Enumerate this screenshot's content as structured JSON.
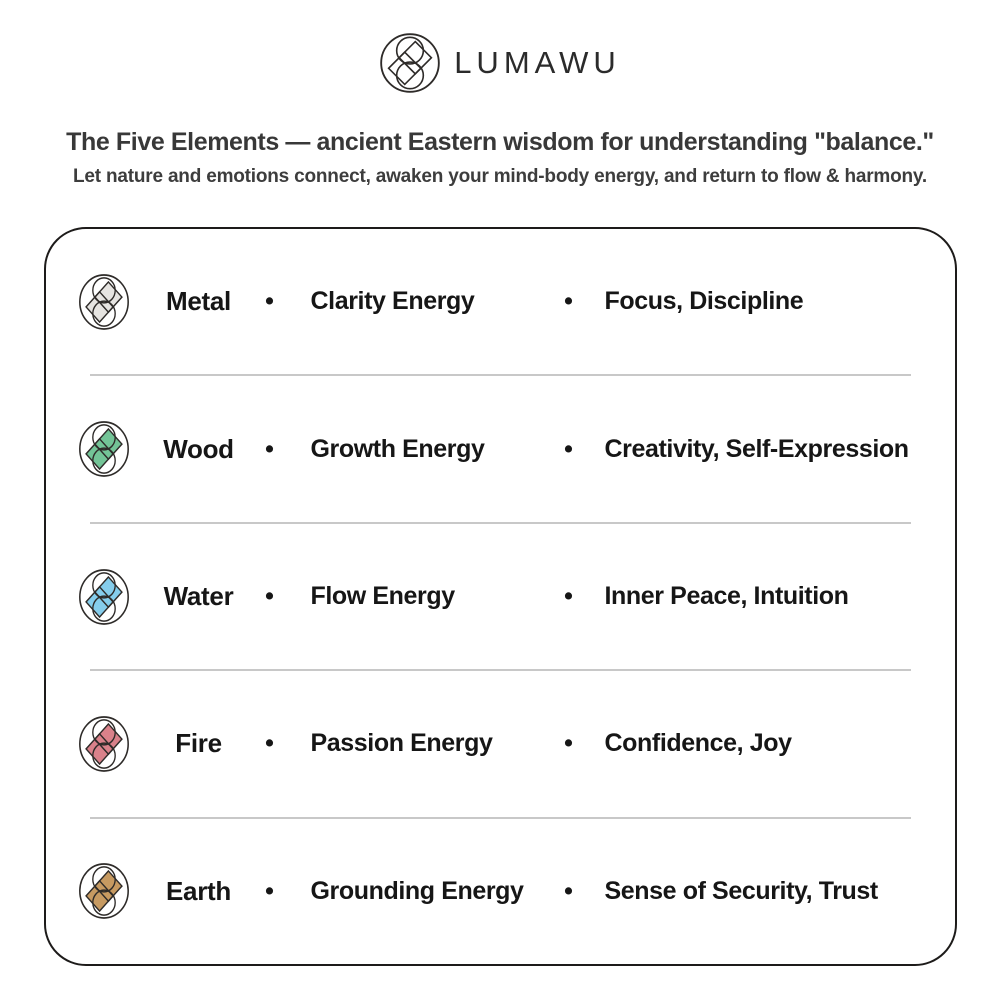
{
  "brand": {
    "name": "LUMAWU"
  },
  "heading": {
    "title": "The Five Elements — ancient Eastern wisdom for understanding \"balance.\"",
    "subtitle": "Let nature and emotions connect, awaken your mind-body energy, and return to flow & harmony."
  },
  "table": {
    "bullet": "•",
    "rows": [
      {
        "element": "Metal",
        "energy": "Clarity Energy",
        "traits": "Focus, Discipline",
        "color": "#e6e4e1"
      },
      {
        "element": "Wood",
        "energy": "Growth Energy",
        "traits": "Creativity, Self-Expression",
        "color": "#73c497"
      },
      {
        "element": "Water",
        "energy": "Flow Energy",
        "traits": "Inner Peace, Intuition",
        "color": "#85cdec"
      },
      {
        "element": "Fire",
        "energy": "Passion Energy",
        "traits": "Confidence, Joy",
        "color": "#d9818a"
      },
      {
        "element": "Earth",
        "energy": "Grounding Energy",
        "traits": "Sense of Security, Trust",
        "color": "#c79a61"
      }
    ]
  },
  "colors": {
    "outline": "#2e2b29",
    "card_border": "#1d1b1a",
    "divider": "#c8c8c8",
    "logo_ink": "#2b2b2b"
  }
}
